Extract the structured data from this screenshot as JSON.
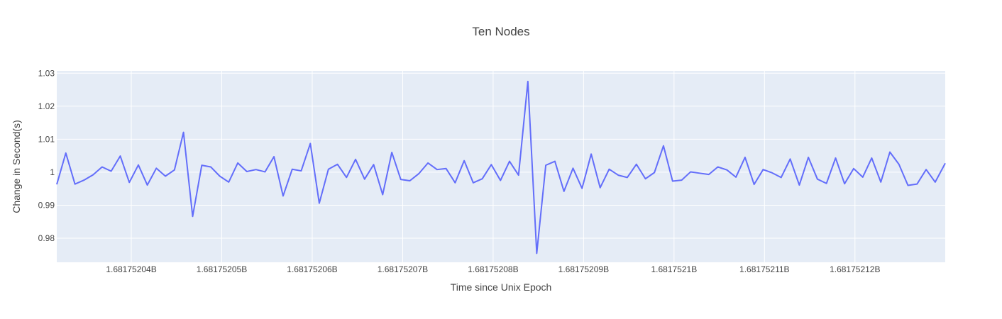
{
  "chart_data": {
    "type": "line",
    "title": "Ten Nodes",
    "xlabel": "Time since Unix Epoch",
    "ylabel": "Change in Second(s)",
    "xlim": [
      1681752031.76,
      1681752129.98
    ],
    "ylim": [
      0.9727,
      1.0307
    ],
    "xtick_values": [
      1681752040,
      1681752050,
      1681752060,
      1681752070,
      1681752080,
      1681752090,
      1681752100,
      1681752110,
      1681752120
    ],
    "xtick_labels": [
      "1.68175204B",
      "1.68175205B",
      "1.68175206B",
      "1.68175207B",
      "1.68175208B",
      "1.68175209B",
      "1.6817521B",
      "1.68175211B",
      "1.68175212B"
    ],
    "ytick_values": [
      0.98,
      0.99,
      1.0,
      1.01,
      1.02,
      1.03
    ],
    "ytick_labels": [
      "0.98",
      "0.99",
      "1",
      "1.01",
      "1.02",
      "1.03"
    ],
    "grid": true,
    "legend": "none",
    "series": [
      {
        "color": "#636efa",
        "x": [
          1681752031.76,
          1681752032.76,
          1681752033.77,
          1681752034.77,
          1681752035.77,
          1681752036.77,
          1681752037.77,
          1681752038.78,
          1681752039.78,
          1681752040.78,
          1681752041.77,
          1681752042.77,
          1681752043.77,
          1681752044.77,
          1681752045.77,
          1681752046.78,
          1681752047.79,
          1681752048.78,
          1681752049.78,
          1681752050.77,
          1681752051.77,
          1681752052.77,
          1681752053.78,
          1681752054.78,
          1681752055.77,
          1681752056.78,
          1681752057.79,
          1681752058.78,
          1681752059.79,
          1681752060.78,
          1681752061.79,
          1681752062.79,
          1681752063.79,
          1681752064.79,
          1681752065.79,
          1681752066.79,
          1681752067.79,
          1681752068.8,
          1681752069.79,
          1681752070.79,
          1681752071.8,
          1681752072.8,
          1681752073.8,
          1681752074.8,
          1681752075.8,
          1681752076.8,
          1681752077.8,
          1681752078.8,
          1681752079.8,
          1681752080.81,
          1681752081.81,
          1681752082.81,
          1681752083.84,
          1681752084.82,
          1681752085.82,
          1681752086.83,
          1681752087.83,
          1681752088.83,
          1681752089.83,
          1681752090.84,
          1681752091.83,
          1681752092.83,
          1681752093.83,
          1681752094.83,
          1681752095.84,
          1681752096.84,
          1681752097.83,
          1681752098.83,
          1681752099.84,
          1681752100.84,
          1681752101.83,
          1681752102.84,
          1681752103.84,
          1681752104.84,
          1681752105.84,
          1681752106.84,
          1681752107.85,
          1681752108.85,
          1681752109.85,
          1681752110.85,
          1681752111.84,
          1681752112.84,
          1681752113.85,
          1681752114.85,
          1681752115.85,
          1681752116.85,
          1681752117.86,
          1681752118.85,
          1681752119.86,
          1681752120.86,
          1681752121.85,
          1681752122.86,
          1681752123.86,
          1681752124.86,
          1681752125.86,
          1681752126.86,
          1681752127.87,
          1681752128.87,
          1681752129.98
        ],
        "y": [
          0.9963,
          1.0058,
          0.9964,
          0.9976,
          0.9992,
          1.0016,
          1.0003,
          1.0049,
          0.9969,
          1.0022,
          0.9961,
          1.0012,
          0.9988,
          1.0007,
          1.0121,
          0.9866,
          1.0021,
          1.0016,
          0.9988,
          0.997,
          1.0028,
          1.0002,
          1.0008,
          1.0001,
          1.0047,
          0.9928,
          1.0009,
          1.0004,
          1.0087,
          0.9906,
          1.0009,
          1.0024,
          0.9984,
          1.0039,
          0.9979,
          1.0023,
          0.9932,
          1.006,
          0.9978,
          0.9974,
          0.9996,
          1.0028,
          1.0008,
          1.0011,
          0.9968,
          1.0035,
          0.9968,
          0.998,
          1.0023,
          0.9975,
          1.0033,
          0.9991,
          1.0275,
          0.9754,
          1.0021,
          1.0033,
          0.9942,
          1.0012,
          0.9951,
          1.0055,
          0.9953,
          1.0009,
          0.9991,
          0.9984,
          1.0024,
          0.998,
          0.9999,
          1.008,
          0.9973,
          0.9976,
          1.0001,
          0.9997,
          0.9993,
          1.0016,
          1.0007,
          0.9985,
          1.0045,
          0.9963,
          1.0008,
          0.9998,
          0.9984,
          1.004,
          0.9961,
          1.0045,
          0.9979,
          0.9966,
          1.0043,
          0.9965,
          1.0011,
          0.9985,
          1.0043,
          0.997,
          1.0061,
          1.0024,
          0.996,
          0.9964,
          1.0008,
          0.997,
          1.0027
        ]
      }
    ]
  }
}
